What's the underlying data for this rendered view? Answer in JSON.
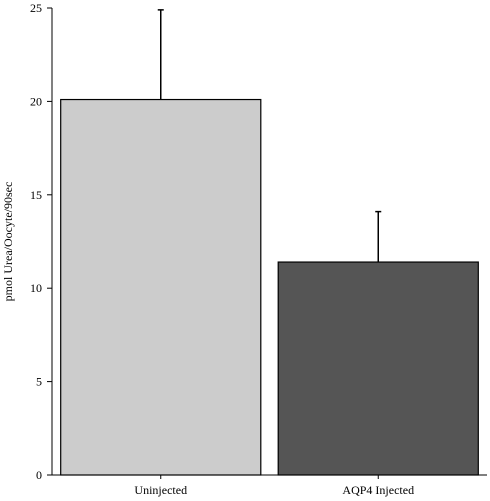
{
  "chart_data": {
    "type": "bar",
    "title": "",
    "xlabel": "",
    "ylabel": "pmol Urea/Oocyte/90sec",
    "ylim": [
      0,
      25
    ],
    "yticks": [
      0,
      5,
      10,
      15,
      20,
      25
    ],
    "categories": [
      "Uninjected",
      "AQP4 Injected"
    ],
    "values": [
      20.1,
      11.4
    ],
    "error_plus": [
      4.8,
      2.7
    ],
    "bar_colors": [
      "#cccccc",
      "#555555"
    ],
    "grid": false,
    "legend": "none"
  }
}
